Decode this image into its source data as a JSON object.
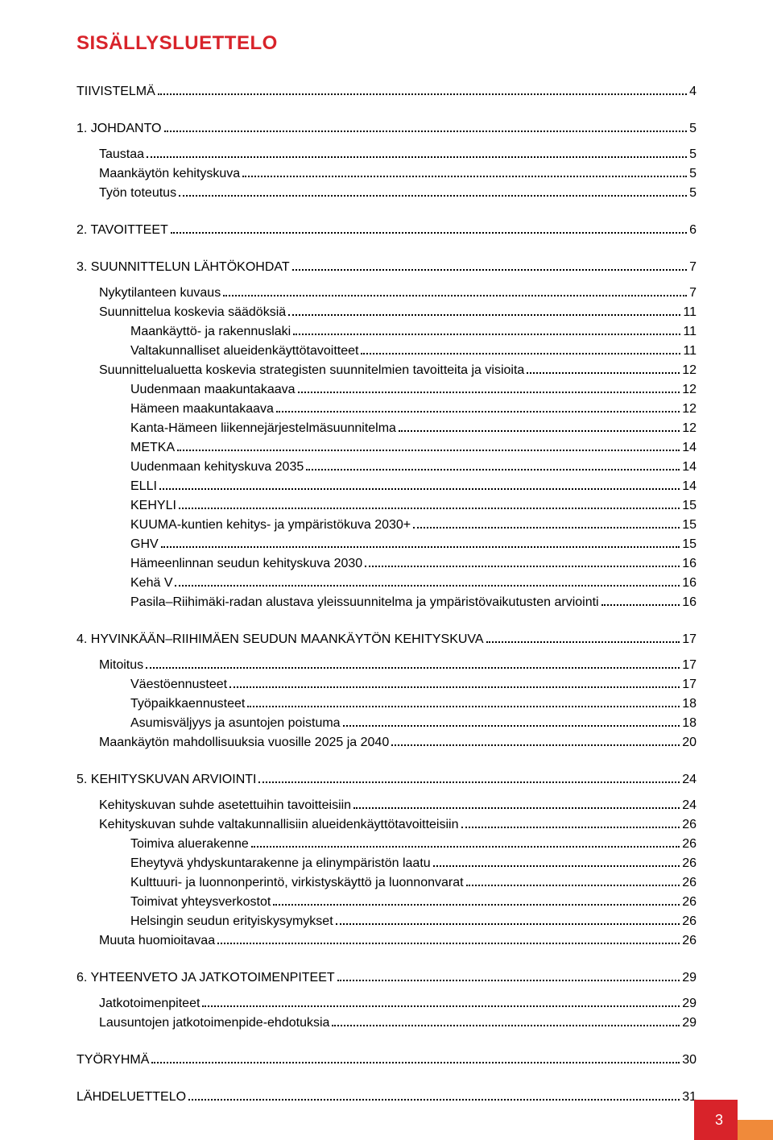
{
  "title": "SISÄLLYSLUETTELO",
  "toc": [
    {
      "label": "TIIVISTELMÄ",
      "page": "4",
      "level": 1,
      "gapAfter": "section"
    },
    {
      "label": "1. JOHDANTO",
      "page": "5",
      "level": 1,
      "gapAfter": "sub"
    },
    {
      "label": "Taustaa",
      "page": "5",
      "level": 2
    },
    {
      "label": "Maankäytön kehityskuva",
      "page": "5",
      "level": 2
    },
    {
      "label": "Työn toteutus",
      "page": "5",
      "level": 2,
      "gapAfter": "section"
    },
    {
      "label": "2. TAVOITTEET",
      "page": "6",
      "level": 1,
      "gapAfter": "section"
    },
    {
      "label": "3. SUUNNITTELUN LÄHTÖKOHDAT",
      "page": "7",
      "level": 1,
      "gapAfter": "sub"
    },
    {
      "label": "Nykytilanteen kuvaus",
      "page": "7",
      "level": 2
    },
    {
      "label": "Suunnittelua koskevia säädöksiä",
      "page": "11",
      "level": 2
    },
    {
      "label": "Maankäyttö- ja rakennuslaki",
      "page": "11",
      "level": 3
    },
    {
      "label": "Valtakunnalliset alueidenkäyttötavoitteet",
      "page": "11",
      "level": 3
    },
    {
      "label": "Suunnittelualuetta koskevia strategisten suunnitelmien tavoitteita ja visioita",
      "page": "12",
      "level": 2
    },
    {
      "label": "Uudenmaan maakuntakaava",
      "page": "12",
      "level": 3
    },
    {
      "label": "Hämeen maakuntakaava",
      "page": "12",
      "level": 3
    },
    {
      "label": "Kanta-Hämeen liikennejärjestelmäsuunnitelma",
      "page": "12",
      "level": 3
    },
    {
      "label": "METKA",
      "page": "14",
      "level": 3
    },
    {
      "label": "Uudenmaan kehityskuva 2035",
      "page": "14",
      "level": 3
    },
    {
      "label": "ELLI",
      "page": "14",
      "level": 3
    },
    {
      "label": "KEHYLI",
      "page": "15",
      "level": 3
    },
    {
      "label": "KUUMA-kuntien kehitys- ja ympäristökuva 2030+",
      "page": "15",
      "level": 3
    },
    {
      "label": "GHV",
      "page": "15",
      "level": 3
    },
    {
      "label": "Hämeenlinnan seudun kehityskuva 2030",
      "page": "16",
      "level": 3
    },
    {
      "label": "Kehä V",
      "page": "16",
      "level": 3
    },
    {
      "label": "Pasila–Riihimäki-radan alustava yleissuunnitelma ja ympäristövaikutusten arviointi",
      "page": "16",
      "level": 3,
      "gapAfter": "section"
    },
    {
      "label": "4. HYVINKÄÄN–RIIHIMÄEN SEUDUN MAANKÄYTÖN KEHITYSKUVA",
      "page": "17",
      "level": 1,
      "gapAfter": "sub"
    },
    {
      "label": "Mitoitus",
      "page": "17",
      "level": 2
    },
    {
      "label": "Väestöennusteet",
      "page": "17",
      "level": 3
    },
    {
      "label": "Työpaikkaennusteet",
      "page": "18",
      "level": 3
    },
    {
      "label": "Asumisväljyys ja asuntojen poistuma",
      "page": "18",
      "level": 3
    },
    {
      "label": "Maankäytön mahdollisuuksia vuosille 2025 ja 2040",
      "page": "20",
      "level": 2,
      "gapAfter": "section"
    },
    {
      "label": "5. KEHITYSKUVAN ARVIOINTI",
      "page": "24",
      "level": 1,
      "gapAfter": "sub"
    },
    {
      "label": "Kehityskuvan suhde asetettuihin tavoitteisiin",
      "page": "24",
      "level": 2
    },
    {
      "label": "Kehityskuvan suhde valtakunnallisiin alueidenkäyttötavoitteisiin",
      "page": "26",
      "level": 2
    },
    {
      "label": "Toimiva aluerakenne",
      "page": "26",
      "level": 3
    },
    {
      "label": "Eheytyvä yhdyskuntarakenne ja elinympäristön laatu",
      "page": "26",
      "level": 3
    },
    {
      "label": "Kulttuuri- ja luonnonperintö, virkistyskäyttö ja luonnonvarat",
      "page": "26",
      "level": 3
    },
    {
      "label": "Toimivat yhteysverkostot",
      "page": "26",
      "level": 3
    },
    {
      "label": "Helsingin seudun erityiskysymykset",
      "page": "26",
      "level": 3
    },
    {
      "label": "Muuta huomioitavaa",
      "page": "26",
      "level": 2,
      "gapAfter": "section"
    },
    {
      "label": "6. YHTEENVETO JA JATKOTOIMENPITEET",
      "page": "29",
      "level": 1,
      "gapAfter": "sub"
    },
    {
      "label": "Jatkotoimenpiteet",
      "page": "29",
      "level": 2
    },
    {
      "label": "Lausuntojen jatkotoimenpide-ehdotuksia",
      "page": "29",
      "level": 2,
      "gapAfter": "section"
    },
    {
      "label": "TYÖRYHMÄ",
      "page": "30",
      "level": 1,
      "gapAfter": "section"
    },
    {
      "label": "LÄHDELUETTELO",
      "page": "31",
      "level": 1
    }
  ],
  "page_number": "3",
  "colors": {
    "accent_red": "#d8232a",
    "accent_orange": "#f08a3a",
    "text": "#000000",
    "background": "#ffffff"
  }
}
